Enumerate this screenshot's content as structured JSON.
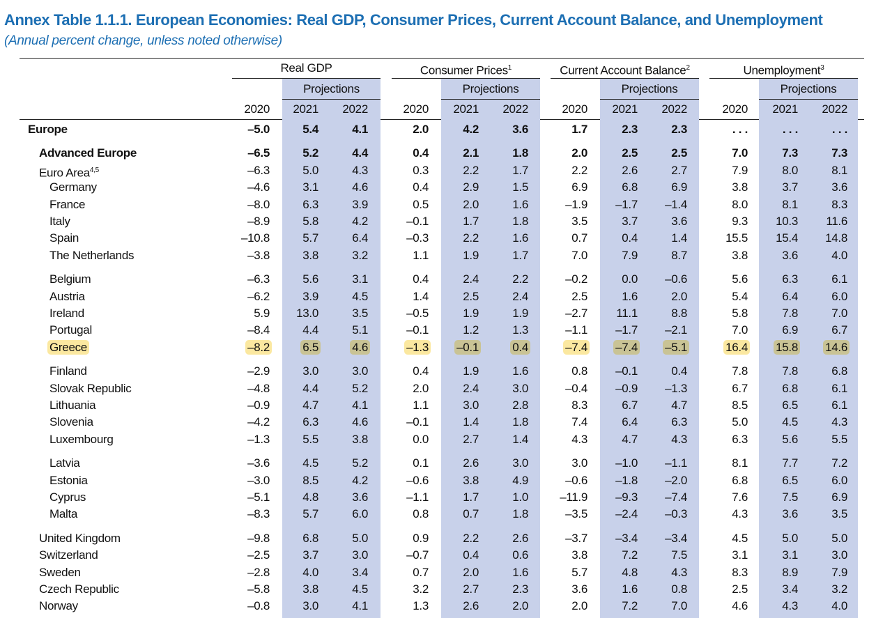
{
  "title": "Annex Table 1.1.1. European Economies: Real GDP, Consumer Prices, Current Account Balance, and Unemployment",
  "subtitle": "(Annual percent change, unless noted otherwise)",
  "colors": {
    "title": "#1d6fb3",
    "projection_shade": "#c8d1ea",
    "highlight_base": "#fbe8a0",
    "highlight_projection": "#c9c395"
  },
  "groups": [
    {
      "label": "Real GDP",
      "sup": ""
    },
    {
      "label": "Consumer Prices",
      "sup": "1"
    },
    {
      "label": "Current Account Balance",
      "sup": "2"
    },
    {
      "label": "Unemployment",
      "sup": "3"
    }
  ],
  "projections_label": "Projections",
  "years": [
    "2020",
    "2021",
    "2022"
  ],
  "rows": [
    {
      "label": "Europe",
      "sup": "",
      "level": 0,
      "bold": true,
      "gap": false,
      "values": [
        "–5.0",
        "5.4",
        "4.1",
        "2.0",
        "4.2",
        "3.6",
        "1.7",
        "2.3",
        "2.3",
        ". . .",
        ". . .",
        ". . ."
      ]
    },
    {
      "label": "Advanced Europe",
      "sup": "",
      "level": 1,
      "bold": true,
      "gap": true,
      "values": [
        "–6.5",
        "5.2",
        "4.4",
        "0.4",
        "2.1",
        "1.8",
        "2.0",
        "2.5",
        "2.5",
        "7.0",
        "7.3",
        "7.3"
      ]
    },
    {
      "label": "Euro Area",
      "sup": "4,5",
      "level": 1,
      "bold": false,
      "gap": false,
      "values": [
        "–6.3",
        "5.0",
        "4.3",
        "0.3",
        "2.2",
        "1.7",
        "2.2",
        "2.6",
        "2.7",
        "7.9",
        "8.0",
        "8.1"
      ]
    },
    {
      "label": "Germany",
      "sup": "",
      "level": 2,
      "gap": false,
      "values": [
        "–4.6",
        "3.1",
        "4.6",
        "0.4",
        "2.9",
        "1.5",
        "6.9",
        "6.8",
        "6.9",
        "3.8",
        "3.7",
        "3.6"
      ]
    },
    {
      "label": "France",
      "sup": "",
      "level": 2,
      "gap": false,
      "values": [
        "–8.0",
        "6.3",
        "3.9",
        "0.5",
        "2.0",
        "1.6",
        "–1.9",
        "–1.7",
        "–1.4",
        "8.0",
        "8.1",
        "8.3"
      ]
    },
    {
      "label": "Italy",
      "sup": "",
      "level": 2,
      "gap": false,
      "values": [
        "–8.9",
        "5.8",
        "4.2",
        "–0.1",
        "1.7",
        "1.8",
        "3.5",
        "3.7",
        "3.6",
        "9.3",
        "10.3",
        "11.6"
      ]
    },
    {
      "label": "Spain",
      "sup": "",
      "level": 2,
      "gap": false,
      "values": [
        "–10.8",
        "5.7",
        "6.4",
        "–0.3",
        "2.2",
        "1.6",
        "0.7",
        "0.4",
        "1.4",
        "15.5",
        "15.4",
        "14.8"
      ]
    },
    {
      "label": "The Netherlands",
      "sup": "",
      "level": 2,
      "gap": false,
      "values": [
        "–3.8",
        "3.8",
        "3.2",
        "1.1",
        "1.9",
        "1.7",
        "7.0",
        "7.9",
        "8.7",
        "3.8",
        "3.6",
        "4.0"
      ]
    },
    {
      "label": "Belgium",
      "sup": "",
      "level": 2,
      "gap": true,
      "values": [
        "–6.3",
        "5.6",
        "3.1",
        "0.4",
        "2.4",
        "2.2",
        "–0.2",
        "0.0",
        "–0.6",
        "5.6",
        "6.3",
        "6.1"
      ]
    },
    {
      "label": "Austria",
      "sup": "",
      "level": 2,
      "gap": false,
      "values": [
        "–6.2",
        "3.9",
        "4.5",
        "1.4",
        "2.5",
        "2.4",
        "2.5",
        "1.6",
        "2.0",
        "5.4",
        "6.4",
        "6.0"
      ]
    },
    {
      "label": "Ireland",
      "sup": "",
      "level": 2,
      "gap": false,
      "values": [
        "5.9",
        "13.0",
        "3.5",
        "–0.5",
        "1.9",
        "1.9",
        "–2.7",
        "11.1",
        "8.8",
        "5.8",
        "7.8",
        "7.0"
      ]
    },
    {
      "label": "Portugal",
      "sup": "",
      "level": 2,
      "gap": false,
      "values": [
        "–8.4",
        "4.4",
        "5.1",
        "–0.1",
        "1.2",
        "1.3",
        "–1.1",
        "–1.7",
        "–2.1",
        "7.0",
        "6.9",
        "6.7"
      ]
    },
    {
      "label": "Greece",
      "sup": "",
      "level": 2,
      "gap": false,
      "highlight": true,
      "values": [
        "–8.2",
        "6.5",
        "4.6",
        "–1.3",
        "–0.1",
        "0.4",
        "–7.4",
        "–7.4",
        "–5.1",
        "16.4",
        "15.8",
        "14.6"
      ]
    },
    {
      "label": "Finland",
      "sup": "",
      "level": 2,
      "gap": true,
      "values": [
        "–2.9",
        "3.0",
        "3.0",
        "0.4",
        "1.9",
        "1.6",
        "0.8",
        "–0.1",
        "0.4",
        "7.8",
        "7.8",
        "6.8"
      ]
    },
    {
      "label": "Slovak Republic",
      "sup": "",
      "level": 2,
      "gap": false,
      "values": [
        "–4.8",
        "4.4",
        "5.2",
        "2.0",
        "2.4",
        "3.0",
        "–0.4",
        "–0.9",
        "–1.3",
        "6.7",
        "6.8",
        "6.1"
      ]
    },
    {
      "label": "Lithuania",
      "sup": "",
      "level": 2,
      "gap": false,
      "values": [
        "–0.9",
        "4.7",
        "4.1",
        "1.1",
        "3.0",
        "2.8",
        "8.3",
        "6.7",
        "4.7",
        "8.5",
        "6.5",
        "6.1"
      ]
    },
    {
      "label": "Slovenia",
      "sup": "",
      "level": 2,
      "gap": false,
      "values": [
        "–4.2",
        "6.3",
        "4.6",
        "–0.1",
        "1.4",
        "1.8",
        "7.4",
        "6.4",
        "6.3",
        "5.0",
        "4.5",
        "4.3"
      ]
    },
    {
      "label": "Luxembourg",
      "sup": "",
      "level": 2,
      "gap": false,
      "values": [
        "–1.3",
        "5.5",
        "3.8",
        "0.0",
        "2.7",
        "1.4",
        "4.3",
        "4.7",
        "4.3",
        "6.3",
        "5.6",
        "5.5"
      ]
    },
    {
      "label": "Latvia",
      "sup": "",
      "level": 2,
      "gap": true,
      "values": [
        "–3.6",
        "4.5",
        "5.2",
        "0.1",
        "2.6",
        "3.0",
        "3.0",
        "–1.0",
        "–1.1",
        "8.1",
        "7.7",
        "7.2"
      ]
    },
    {
      "label": "Estonia",
      "sup": "",
      "level": 2,
      "gap": false,
      "values": [
        "–3.0",
        "8.5",
        "4.2",
        "–0.6",
        "3.8",
        "4.9",
        "–0.6",
        "–1.8",
        "–2.0",
        "6.8",
        "6.5",
        "6.0"
      ]
    },
    {
      "label": "Cyprus",
      "sup": "",
      "level": 2,
      "gap": false,
      "values": [
        "–5.1",
        "4.8",
        "3.6",
        "–1.1",
        "1.7",
        "1.0",
        "–11.9",
        "–9.3",
        "–7.4",
        "7.6",
        "7.5",
        "6.9"
      ]
    },
    {
      "label": "Malta",
      "sup": "",
      "level": 2,
      "gap": false,
      "values": [
        "–8.3",
        "5.7",
        "6.0",
        "0.8",
        "0.7",
        "1.8",
        "–3.5",
        "–2.4",
        "–0.3",
        "4.3",
        "3.6",
        "3.5"
      ]
    },
    {
      "label": "United Kingdom",
      "sup": "",
      "level": 1,
      "gap": true,
      "values": [
        "–9.8",
        "6.8",
        "5.0",
        "0.9",
        "2.2",
        "2.6",
        "–3.7",
        "–3.4",
        "–3.4",
        "4.5",
        "5.0",
        "5.0"
      ]
    },
    {
      "label": "Switzerland",
      "sup": "",
      "level": 1,
      "gap": false,
      "values": [
        "–2.5",
        "3.7",
        "3.0",
        "–0.7",
        "0.4",
        "0.6",
        "3.8",
        "7.2",
        "7.5",
        "3.1",
        "3.1",
        "3.0"
      ]
    },
    {
      "label": "Sweden",
      "sup": "",
      "level": 1,
      "gap": false,
      "values": [
        "–2.8",
        "4.0",
        "3.4",
        "0.7",
        "2.0",
        "1.6",
        "5.7",
        "4.8",
        "4.3",
        "8.3",
        "8.9",
        "7.9"
      ]
    },
    {
      "label": "Czech Republic",
      "sup": "",
      "level": 1,
      "gap": false,
      "values": [
        "–5.8",
        "3.8",
        "4.5",
        "3.2",
        "2.7",
        "2.3",
        "3.6",
        "1.6",
        "0.8",
        "2.5",
        "3.4",
        "3.2"
      ]
    },
    {
      "label": "Norway",
      "sup": "",
      "level": 1,
      "gap": false,
      "values": [
        "–0.8",
        "3.0",
        "4.1",
        "1.3",
        "2.6",
        "2.0",
        "2.0",
        "7.2",
        "7.0",
        "4.6",
        "4.3",
        "4.0"
      ]
    }
  ]
}
